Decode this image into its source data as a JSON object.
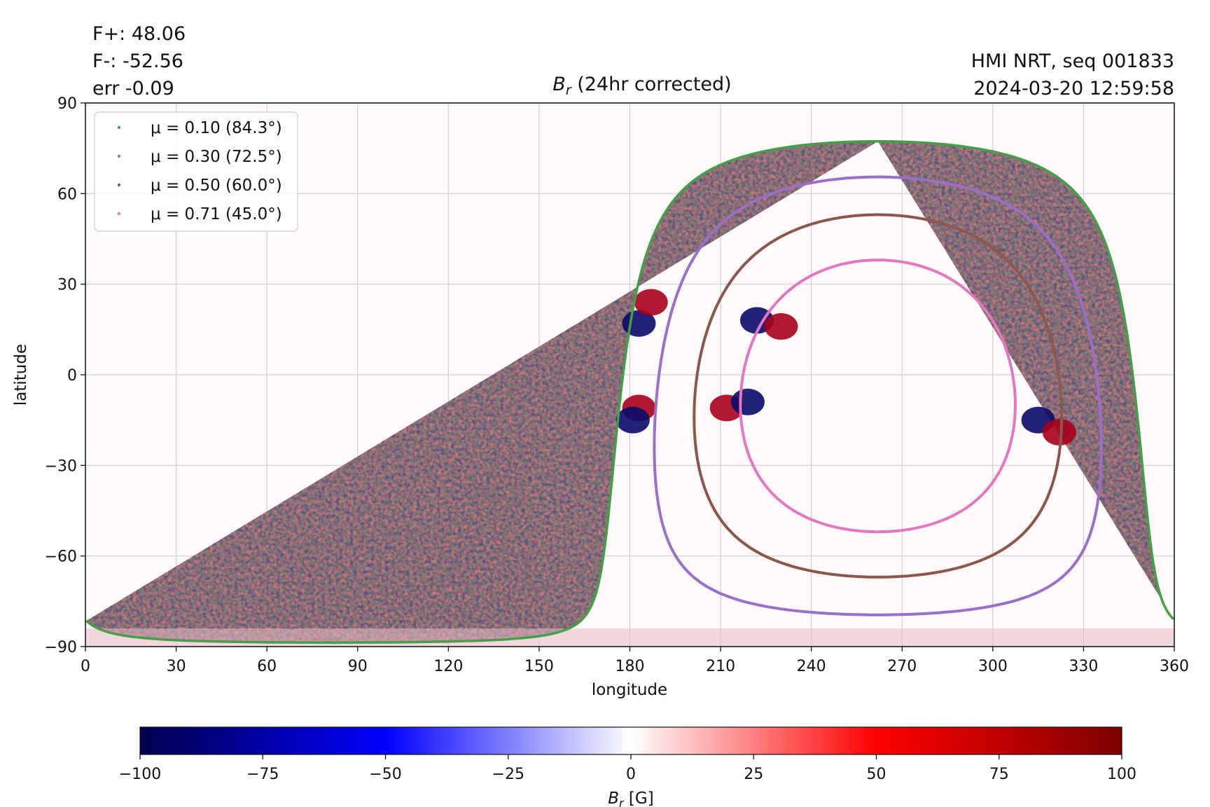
{
  "stats": {
    "f_plus": "F+: 48.06",
    "f_minus": "F-: -52.56",
    "err": "err -0.09"
  },
  "source": {
    "line1": "HMI NRT, seq 001833",
    "line2": "2024-03-20 12:59:58"
  },
  "chart_data": {
    "type": "heatmap",
    "title_main": "B",
    "title_sub": "r",
    "title_rest": " (24hr corrected)",
    "xlabel": "longitude",
    "ylabel": "latitude",
    "xlim": [
      0,
      360
    ],
    "ylim": [
      -90,
      90
    ],
    "xticks": [
      0,
      30,
      60,
      90,
      120,
      150,
      180,
      210,
      240,
      270,
      300,
      330,
      360
    ],
    "yticks": [
      -90,
      -60,
      -30,
      0,
      30,
      60,
      90
    ],
    "grid": true,
    "legend_position": "upper-left",
    "colormap": "seismic",
    "colorbar": {
      "label_main": "B",
      "label_sub": "r",
      "label_rest": " [G]",
      "min": -100,
      "max": 100,
      "ticks": [
        -100,
        -75,
        -50,
        -25,
        0,
        25,
        50,
        75,
        100
      ],
      "colors": [
        "#00004c",
        "#0000ff",
        "#ffffff",
        "#ff0000",
        "#7f0000"
      ]
    },
    "disk_center": {
      "lon": 262,
      "lat": -7
    },
    "series": [
      {
        "name": "μ = 0.10 (84.3°)",
        "color": "#43a047",
        "angle_deg": 84.3
      },
      {
        "name": "μ = 0.30 (72.5°)",
        "color": "#9b6fc8",
        "angle_deg": 72.5
      },
      {
        "name": "μ = 0.50 (60.0°)",
        "color": "#8c564b",
        "angle_deg": 60.0
      },
      {
        "name": "μ = 0.71 (45.0°)",
        "color": "#e377c2",
        "angle_deg": 45.0
      }
    ],
    "active_regions": [
      {
        "lon": 222,
        "lat": 18,
        "polarity": "negative"
      },
      {
        "lon": 230,
        "lat": 16,
        "polarity": "positive"
      },
      {
        "lon": 212,
        "lat": -11,
        "polarity": "positive"
      },
      {
        "lon": 219,
        "lat": -9,
        "polarity": "negative"
      },
      {
        "lon": 315,
        "lat": -15,
        "polarity": "negative"
      },
      {
        "lon": 322,
        "lat": -19,
        "polarity": "positive"
      },
      {
        "lon": 183,
        "lat": -11,
        "polarity": "positive"
      },
      {
        "lon": 181,
        "lat": -15,
        "polarity": "negative"
      },
      {
        "lon": 183,
        "lat": 17,
        "polarity": "negative"
      },
      {
        "lon": 187,
        "lat": 24,
        "polarity": "positive"
      }
    ]
  }
}
